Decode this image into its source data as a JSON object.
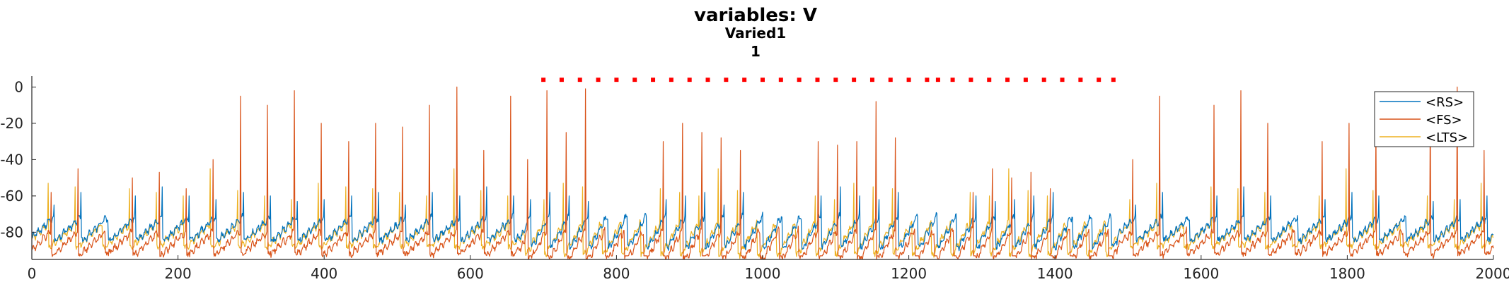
{
  "chart_data": {
    "type": "line",
    "title": "variables: V",
    "subtitle_lines": [
      "Varied1",
      "1"
    ],
    "xlabel": "",
    "ylabel": "",
    "xlim": [
      0,
      2000
    ],
    "ylim": [
      -95,
      6
    ],
    "x_ticks": [
      0,
      200,
      400,
      600,
      800,
      1000,
      1200,
      1400,
      1600,
      1800,
      2000
    ],
    "y_ticks": [
      0,
      -20,
      -40,
      -60,
      -80
    ],
    "grid": false,
    "legend_position": "top-right",
    "legend": [
      "<RS>",
      "<FS>",
      "<LTS>"
    ],
    "drive_period": {
      "start": 675,
      "end": 1485
    },
    "series": [
      {
        "name": "<RS>",
        "color": "#0072bd",
        "baseline": -74,
        "spike_peaks": [
          -65,
          -58,
          -60,
          -55,
          -60,
          -62,
          -58,
          -60,
          -63,
          -62,
          -60,
          -58
        ]
      },
      {
        "name": "<FS>",
        "color": "#d95319",
        "baseline": -82,
        "spike_peaks": [
          -58,
          -45,
          -50,
          -47,
          -56,
          -40,
          -5,
          -10,
          -2,
          -20,
          -30,
          -20,
          -22,
          -10,
          0,
          -35,
          -5,
          -40,
          -2,
          -25,
          -1,
          -30,
          -20,
          -25,
          -28,
          -35,
          -30,
          -32,
          -30,
          -8,
          -28
        ]
      },
      {
        "name": "<LTS>",
        "color": "#edb120",
        "baseline": -78,
        "spike_peaks": [
          -53,
          -55,
          -56,
          -58,
          -60,
          -45,
          -57,
          -60,
          -62
        ]
      }
    ],
    "stim_markers": {
      "color": "#ff0000",
      "y": 4,
      "x": [
        700,
        725,
        750,
        775,
        800,
        825,
        850,
        875,
        900,
        925,
        950,
        975,
        1000,
        1025,
        1050,
        1075,
        1100,
        1125,
        1150,
        1175,
        1200,
        1225,
        1240,
        1260,
        1285,
        1310,
        1335,
        1360,
        1385,
        1410,
        1435,
        1460,
        1480
      ]
    }
  }
}
